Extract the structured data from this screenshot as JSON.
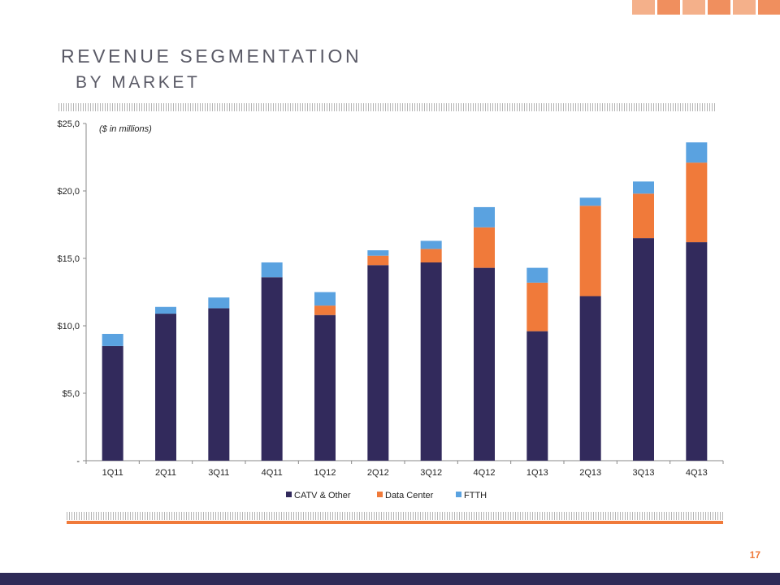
{
  "slide": {
    "title_line1": "REVENUE SEGMENTATION",
    "title_line2": "BY MARKET",
    "page_number": "17",
    "accent_blocks": [
      "#f4b08a",
      "#f08f5e",
      "#f4b08a",
      "#f08f5e",
      "#f4b08a",
      "#f08f5e"
    ]
  },
  "chart_data": {
    "type": "bar",
    "stacked": true,
    "note": "($ in millions)",
    "categories": [
      "1Q11",
      "2Q11",
      "3Q11",
      "4Q11",
      "1Q12",
      "2Q12",
      "3Q12",
      "4Q12",
      "1Q13",
      "2Q13",
      "3Q13",
      "4Q13"
    ],
    "series": [
      {
        "name": "CATV & Other",
        "color": "#322a5c",
        "values": [
          8.5,
          10.9,
          11.3,
          13.6,
          10.8,
          14.5,
          14.7,
          14.3,
          9.6,
          12.2,
          16.5,
          16.2
        ]
      },
      {
        "name": "Data Center",
        "color": "#f07a3a",
        "values": [
          0.0,
          0.0,
          0.0,
          0.0,
          0.7,
          0.7,
          1.0,
          3.0,
          3.6,
          6.7,
          3.3,
          5.9
        ]
      },
      {
        "name": "FTTH",
        "color": "#5aa2e0",
        "values": [
          0.9,
          0.5,
          0.8,
          1.1,
          1.0,
          0.4,
          0.6,
          1.5,
          1.1,
          0.6,
          0.9,
          1.5
        ]
      }
    ],
    "y_ticks": [
      {
        "value": 0,
        "label": "-"
      },
      {
        "value": 5,
        "label": "$5,0"
      },
      {
        "value": 10,
        "label": "$10,0"
      },
      {
        "value": 15,
        "label": "$15,0"
      },
      {
        "value": 20,
        "label": "$20,0"
      },
      {
        "value": 25,
        "label": "$25,0"
      }
    ],
    "ylim": [
      0,
      25
    ],
    "grid": false,
    "legend": "bottom"
  }
}
